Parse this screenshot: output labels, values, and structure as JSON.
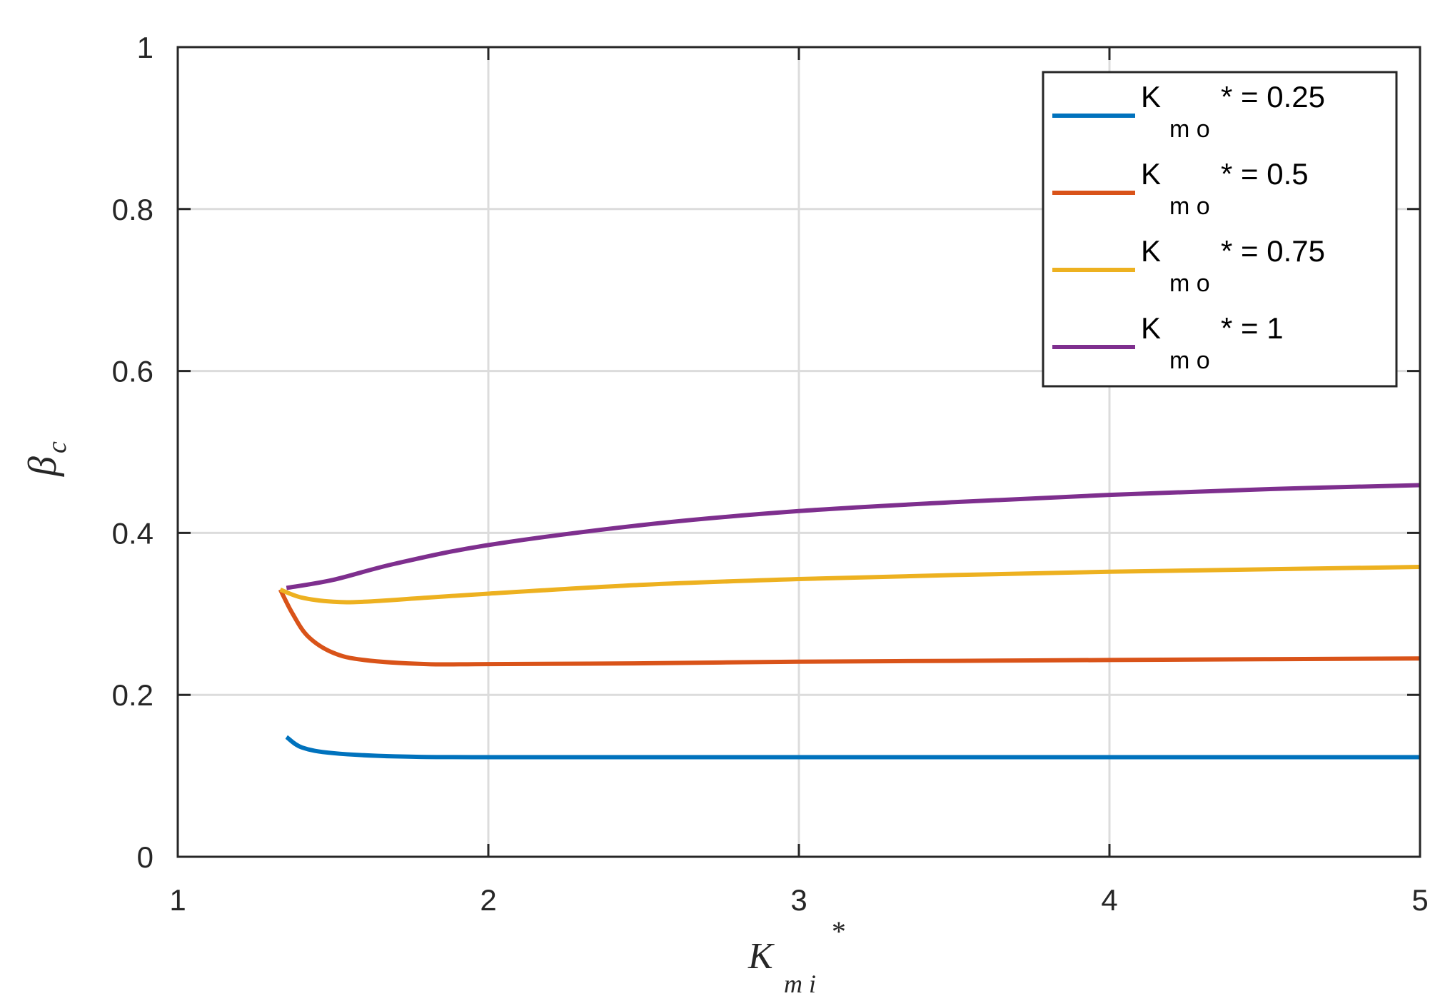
{
  "chart_data": {
    "type": "line",
    "xlim": [
      1,
      5
    ],
    "ylim": [
      0,
      1
    ],
    "xticks": [
      "1",
      "2",
      "3",
      "4",
      "5"
    ],
    "yticks": [
      "0",
      "0.2",
      "0.4",
      "0.6",
      "0.8",
      "1"
    ],
    "xlabel": {
      "main": "K",
      "sub": "m i",
      "sup": "*"
    },
    "ylabel": {
      "main": "β",
      "sub": "c"
    },
    "grid": true,
    "legend_position": "top-right",
    "series": [
      {
        "legend": {
          "main": "K",
          "sub": "m o",
          "tail": "* = 0.25"
        },
        "color": "#0072BD",
        "points": [
          [
            1.35,
            0.148
          ],
          [
            1.4,
            0.135
          ],
          [
            1.5,
            0.128
          ],
          [
            1.7,
            0.124
          ],
          [
            2.0,
            0.123
          ],
          [
            3.0,
            0.123
          ],
          [
            4.0,
            0.123
          ],
          [
            5.0,
            0.123
          ]
        ]
      },
      {
        "legend": {
          "main": "K",
          "sub": "m o",
          "tail": "* = 0.5"
        },
        "color": "#D95319",
        "points": [
          [
            1.33,
            0.33
          ],
          [
            1.37,
            0.3
          ],
          [
            1.42,
            0.272
          ],
          [
            1.5,
            0.252
          ],
          [
            1.6,
            0.243
          ],
          [
            1.8,
            0.238
          ],
          [
            2.0,
            0.238
          ],
          [
            2.5,
            0.239
          ],
          [
            3.0,
            0.241
          ],
          [
            3.5,
            0.242
          ],
          [
            4.0,
            0.243
          ],
          [
            4.5,
            0.244
          ],
          [
            5.0,
            0.245
          ]
        ]
      },
      {
        "legend": {
          "main": "K",
          "sub": "m o",
          "tail": "* = 0.75"
        },
        "color": "#EDB120",
        "points": [
          [
            1.33,
            0.33
          ],
          [
            1.4,
            0.32
          ],
          [
            1.5,
            0.315
          ],
          [
            1.6,
            0.315
          ],
          [
            1.8,
            0.32
          ],
          [
            2.0,
            0.325
          ],
          [
            2.5,
            0.336
          ],
          [
            3.0,
            0.343
          ],
          [
            3.5,
            0.348
          ],
          [
            4.0,
            0.352
          ],
          [
            4.5,
            0.355
          ],
          [
            5.0,
            0.358
          ]
        ]
      },
      {
        "legend": {
          "main": "K",
          "sub": "m o",
          "tail": "* = 1"
        },
        "color": "#7E2F8E",
        "points": [
          [
            1.35,
            0.332
          ],
          [
            1.5,
            0.342
          ],
          [
            1.7,
            0.362
          ],
          [
            2.0,
            0.385
          ],
          [
            2.5,
            0.41
          ],
          [
            3.0,
            0.427
          ],
          [
            3.5,
            0.438
          ],
          [
            4.0,
            0.447
          ],
          [
            4.5,
            0.454
          ],
          [
            5.0,
            0.459
          ]
        ]
      }
    ]
  }
}
